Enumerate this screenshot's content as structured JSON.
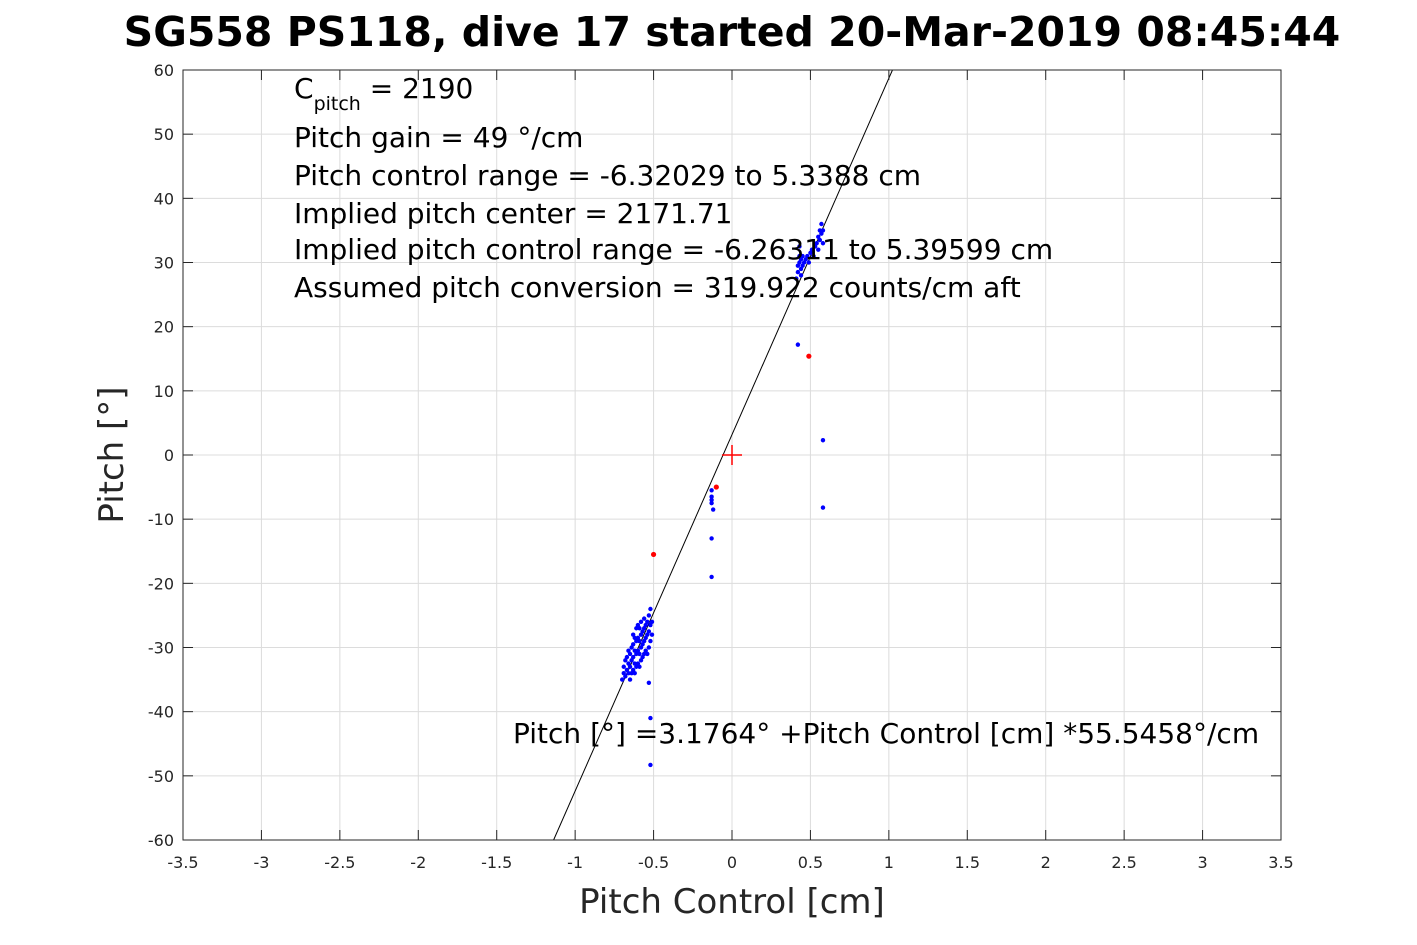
{
  "chart_data": {
    "type": "scatter",
    "title": "SG558 PS118, dive 17 started 20-Mar-2019 08:45:44",
    "xlabel": "Pitch Control [cm]",
    "ylabel": "Pitch [°]",
    "xlim": [
      -3.5,
      3.5
    ],
    "ylim": [
      -60,
      60
    ],
    "xticks": [
      -3.5,
      -3,
      -2.5,
      -2,
      -1.5,
      -1,
      -0.5,
      0,
      0.5,
      1,
      1.5,
      2,
      2.5,
      3,
      3.5
    ],
    "yticks": [
      -60,
      -50,
      -40,
      -30,
      -20,
      -10,
      0,
      10,
      20,
      30,
      40,
      50,
      60
    ],
    "grid": true,
    "colors": {
      "main_points": "#0000ff",
      "outlier_points": "#ff0000",
      "fit_line": "#000000",
      "center_marker": "#ff0000"
    },
    "annotations": {
      "cpitch_main": "C",
      "cpitch_sub": "pitch",
      "cpitch_value": " = 2190",
      "pitch_gain": "Pitch gain = 49 °/cm",
      "control_range": "Pitch control range = -6.32029 to 5.3388 cm",
      "implied_center": "Implied pitch center = 2171.71",
      "implied_range": "Implied pitch control range = -6.26311 to 5.39599 cm",
      "conversion": "Assumed pitch conversion = 319.922 counts/cm aft",
      "fit_equation": "Pitch [°] =3.1764° +Pitch Control [cm] *55.5458°/cm"
    },
    "fit_line": {
      "intercept": 3.1764,
      "slope": 55.5458
    },
    "center_marker": {
      "x": 0,
      "y": 0
    },
    "series": [
      {
        "role": "main_points",
        "points": [
          [
            -0.7,
            -35.0
          ],
          [
            -0.69,
            -34.0
          ],
          [
            -0.69,
            -33.0
          ],
          [
            -0.68,
            -34.5
          ],
          [
            -0.68,
            -32.0
          ],
          [
            -0.67,
            -33.5
          ],
          [
            -0.67,
            -31.5
          ],
          [
            -0.66,
            -34.0
          ],
          [
            -0.66,
            -32.5
          ],
          [
            -0.66,
            -30.5
          ],
          [
            -0.65,
            -35.0
          ],
          [
            -0.65,
            -33.0
          ],
          [
            -0.65,
            -31.0
          ],
          [
            -0.64,
            -34.0
          ],
          [
            -0.64,
            -32.0
          ],
          [
            -0.64,
            -30.0
          ],
          [
            -0.63,
            -33.5
          ],
          [
            -0.63,
            -31.5
          ],
          [
            -0.63,
            -29.5
          ],
          [
            -0.63,
            -28.0
          ],
          [
            -0.62,
            -34.0
          ],
          [
            -0.62,
            -32.5
          ],
          [
            -0.62,
            -30.5
          ],
          [
            -0.62,
            -28.5
          ],
          [
            -0.61,
            -33.0
          ],
          [
            -0.61,
            -31.0
          ],
          [
            -0.61,
            -29.0
          ],
          [
            -0.61,
            -27.0
          ],
          [
            -0.6,
            -32.5
          ],
          [
            -0.6,
            -30.5
          ],
          [
            -0.6,
            -28.5
          ],
          [
            -0.6,
            -26.5
          ],
          [
            -0.59,
            -33.0
          ],
          [
            -0.59,
            -31.0
          ],
          [
            -0.59,
            -29.0
          ],
          [
            -0.59,
            -27.0
          ],
          [
            -0.58,
            -32.0
          ],
          [
            -0.58,
            -30.0
          ],
          [
            -0.58,
            -28.0
          ],
          [
            -0.58,
            -26.0
          ],
          [
            -0.57,
            -31.5
          ],
          [
            -0.57,
            -29.5
          ],
          [
            -0.57,
            -27.5
          ],
          [
            -0.56,
            -31.0
          ],
          [
            -0.56,
            -29.0
          ],
          [
            -0.56,
            -27.0
          ],
          [
            -0.56,
            -25.5
          ],
          [
            -0.55,
            -30.5
          ],
          [
            -0.55,
            -28.5
          ],
          [
            -0.55,
            -26.5
          ],
          [
            -0.54,
            -31.0
          ],
          [
            -0.54,
            -28.0
          ],
          [
            -0.54,
            -26.0
          ],
          [
            -0.53,
            -30.0
          ],
          [
            -0.53,
            -27.5
          ],
          [
            -0.53,
            -25.0
          ],
          [
            -0.52,
            -29.0
          ],
          [
            -0.52,
            -26.5
          ],
          [
            -0.52,
            -24.0
          ],
          [
            -0.51,
            -28.0
          ],
          [
            -0.51,
            -26.0
          ],
          [
            -0.53,
            -35.5
          ],
          [
            -0.52,
            -41.0
          ],
          [
            -0.52,
            -48.3
          ],
          [
            -0.13,
            -5.5
          ],
          [
            -0.13,
            -6.5
          ],
          [
            -0.13,
            -7.0
          ],
          [
            -0.13,
            -7.5
          ],
          [
            -0.12,
            -8.5
          ],
          [
            -0.13,
            -13.0
          ],
          [
            -0.13,
            -19.0
          ],
          [
            0.41,
            27.5
          ],
          [
            0.42,
            28.5
          ],
          [
            0.42,
            29.5
          ],
          [
            0.43,
            30.0
          ],
          [
            0.43,
            31.0
          ],
          [
            0.44,
            28.0
          ],
          [
            0.44,
            29.0
          ],
          [
            0.44,
            30.5
          ],
          [
            0.45,
            31.0
          ],
          [
            0.45,
            29.5
          ],
          [
            0.46,
            30.0
          ],
          [
            0.47,
            30.5
          ],
          [
            0.48,
            31.0
          ],
          [
            0.49,
            30.0
          ],
          [
            0.5,
            31.5
          ],
          [
            0.51,
            32.0
          ],
          [
            0.52,
            31.0
          ],
          [
            0.53,
            32.5
          ],
          [
            0.54,
            33.0
          ],
          [
            0.55,
            34.0
          ],
          [
            0.55,
            32.0
          ],
          [
            0.56,
            35.0
          ],
          [
            0.56,
            33.5
          ],
          [
            0.57,
            34.5
          ],
          [
            0.57,
            36.0
          ],
          [
            0.58,
            35.0
          ],
          [
            0.58,
            33.0
          ],
          [
            0.43,
            32.5
          ],
          [
            0.42,
            17.2
          ],
          [
            0.58,
            2.3
          ],
          [
            0.58,
            -8.2
          ]
        ]
      },
      {
        "role": "outlier_points",
        "points": [
          [
            -0.5,
            -15.5
          ],
          [
            -0.1,
            -5.0
          ],
          [
            0.49,
            15.4
          ]
        ]
      }
    ]
  }
}
